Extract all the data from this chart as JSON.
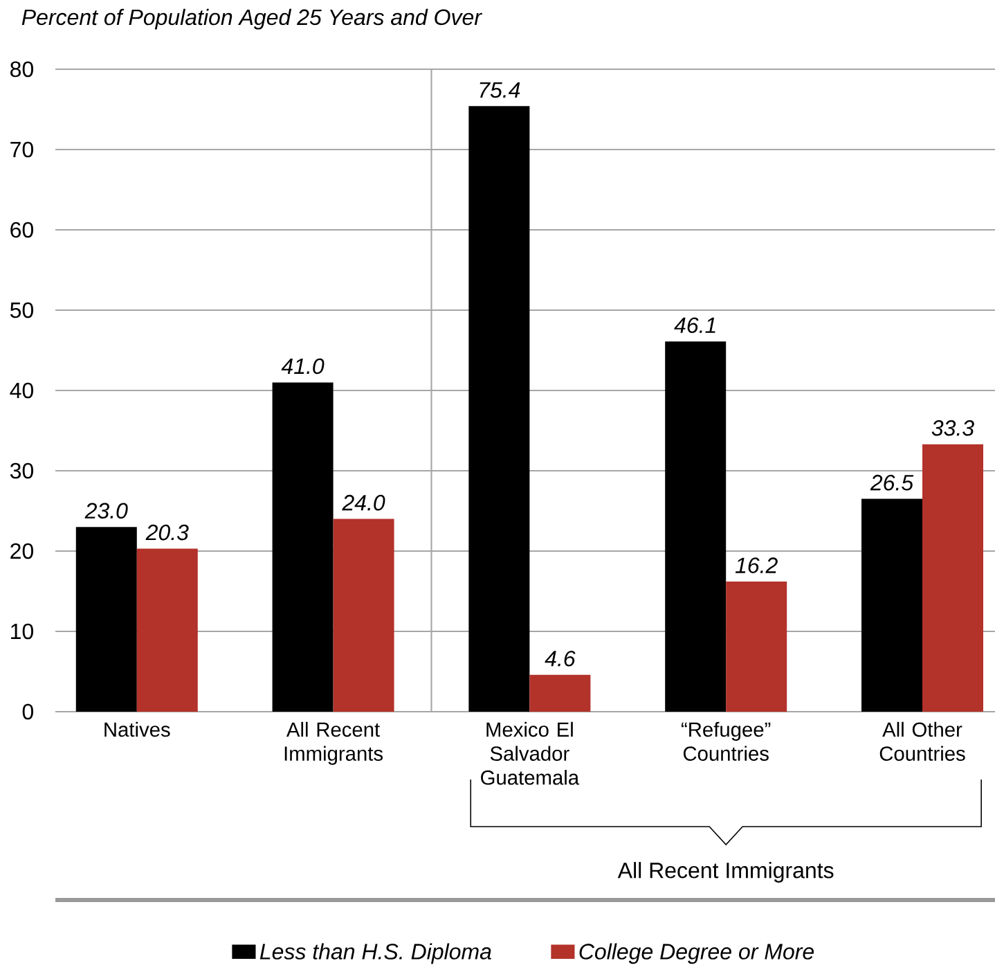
{
  "chart_data": {
    "type": "bar",
    "title": "Percent of Population Aged 25 Years and Over",
    "categories": [
      "Natives",
      "All Recent Immigrants",
      "Mexico El Salvador Guatemala",
      "“Refugee” Countries",
      "All Other Countries"
    ],
    "series": [
      {
        "name": "Less than H.S. Diploma",
        "color": "#000000",
        "values": [
          23.0,
          41.0,
          75.4,
          46.1,
          26.5
        ],
        "value_labels": [
          "23.0",
          "41.0",
          "75.4",
          "46.1",
          "26.5"
        ]
      },
      {
        "name": "College Degree or More",
        "color": "#b3322a",
        "values": [
          20.3,
          24.0,
          4.6,
          16.2,
          33.3
        ],
        "value_labels": [
          "20.3",
          "24.0",
          "4.6",
          "16.2",
          "33.3"
        ]
      }
    ],
    "ylim": [
      0,
      80
    ],
    "yticks": [
      0,
      10,
      20,
      30,
      40,
      50,
      60,
      70,
      80
    ],
    "grid": "y",
    "legend": "bottom",
    "annotations": [
      "All Recent Immigrants"
    ]
  }
}
